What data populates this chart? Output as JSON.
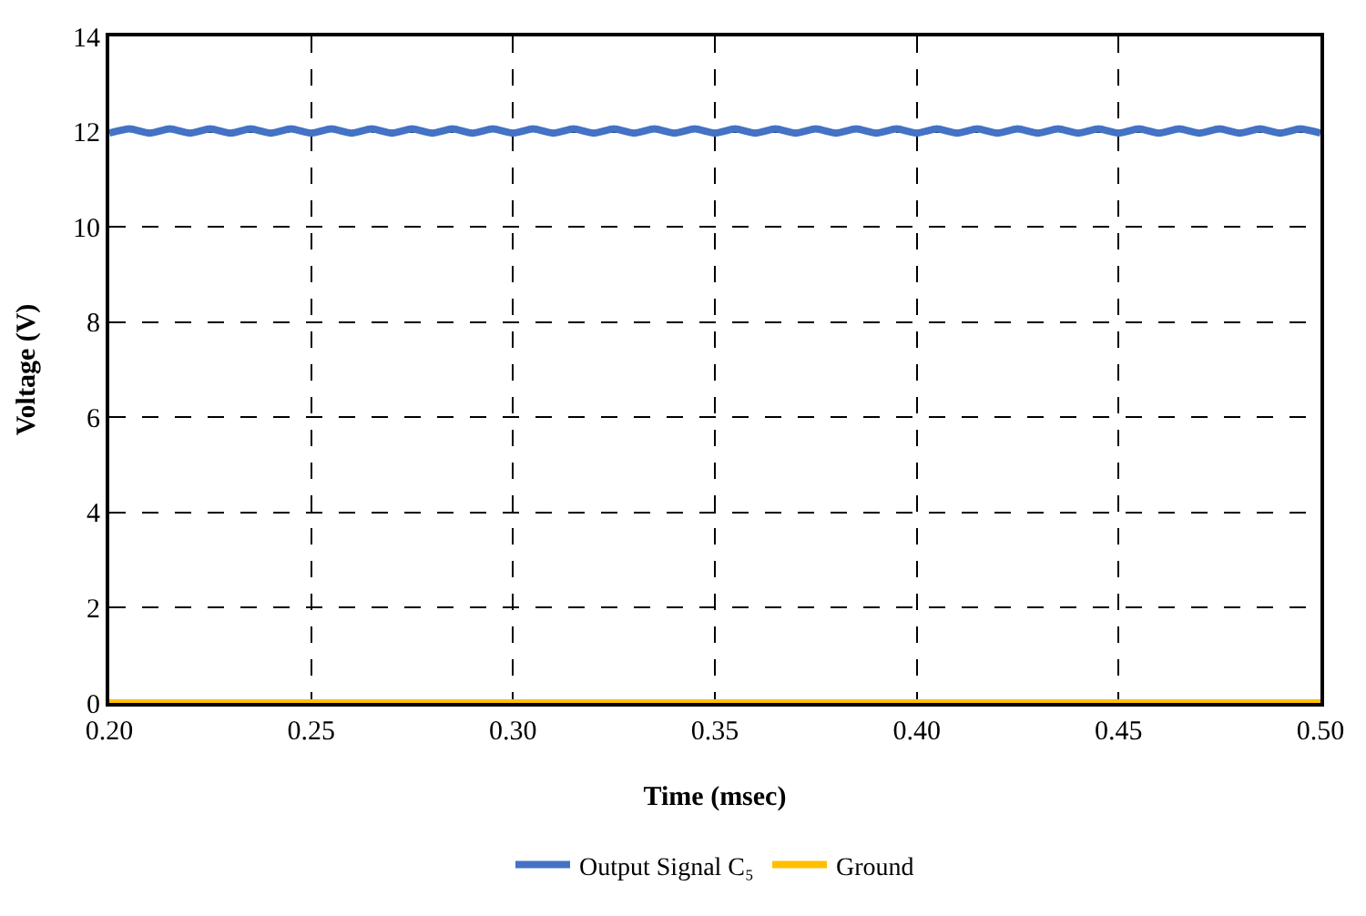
{
  "chart_data": {
    "type": "line",
    "xlabel": "Time (msec)",
    "ylabel": "Voltage (V)",
    "xlim": [
      0.2,
      0.5
    ],
    "xticks": [
      {
        "value": 0.2,
        "label": "0.20"
      },
      {
        "value": 0.25,
        "label": "0.25"
      },
      {
        "value": 0.3,
        "label": "0.30"
      },
      {
        "value": 0.35,
        "label": "0.35"
      },
      {
        "value": 0.4,
        "label": "0.40"
      },
      {
        "value": 0.45,
        "label": "0.45"
      },
      {
        "value": 0.5,
        "label": "0.50"
      }
    ],
    "ylim": [
      0,
      14
    ],
    "yticks": [
      0,
      2,
      4,
      6,
      8,
      10,
      12,
      14
    ],
    "grid": true,
    "legend": "bottom",
    "marker": "none",
    "line_style": "solid",
    "series": [
      {
        "name": "Output Signal C₅",
        "color": "#4472c4",
        "x": [
          0.2,
          0.205,
          0.21,
          0.215,
          0.22,
          0.225,
          0.23,
          0.235,
          0.24,
          0.245,
          0.25,
          0.255,
          0.26,
          0.265,
          0.27,
          0.275,
          0.28,
          0.285,
          0.29,
          0.295,
          0.3,
          0.305,
          0.31,
          0.315,
          0.32,
          0.325,
          0.33,
          0.335,
          0.34,
          0.345,
          0.35,
          0.355,
          0.36,
          0.365,
          0.37,
          0.375,
          0.38,
          0.385,
          0.39,
          0.395,
          0.4,
          0.405,
          0.41,
          0.415,
          0.42,
          0.425,
          0.43,
          0.435,
          0.44,
          0.445,
          0.45,
          0.455,
          0.46,
          0.465,
          0.47,
          0.475,
          0.48,
          0.485,
          0.49,
          0.495,
          0.5
        ],
        "values": [
          11.97,
          12.06,
          11.97,
          12.06,
          11.97,
          12.06,
          11.97,
          12.06,
          11.97,
          12.06,
          11.97,
          12.06,
          11.97,
          12.06,
          11.97,
          12.06,
          11.97,
          12.06,
          11.97,
          12.06,
          11.97,
          12.06,
          11.97,
          12.06,
          11.97,
          12.06,
          11.97,
          12.06,
          11.97,
          12.06,
          11.97,
          12.06,
          11.97,
          12.06,
          11.97,
          12.06,
          11.97,
          12.06,
          11.97,
          12.06,
          11.97,
          12.06,
          11.97,
          12.06,
          11.97,
          12.06,
          11.97,
          12.06,
          11.97,
          12.06,
          11.97,
          12.06,
          11.97,
          12.06,
          11.97,
          12.06,
          11.97,
          12.06,
          11.97,
          12.06,
          11.97
        ]
      },
      {
        "name": "Ground",
        "color": "#ffc000",
        "x": [
          0.2,
          0.5
        ],
        "values": [
          0,
          0
        ]
      }
    ]
  }
}
